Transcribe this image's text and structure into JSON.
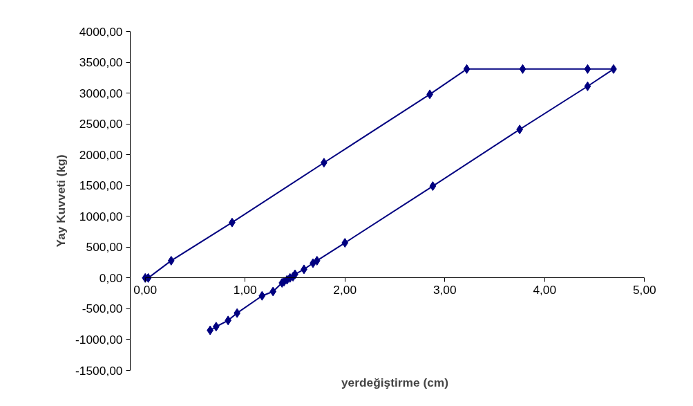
{
  "chart_data": {
    "type": "line",
    "xlabel": "yerdeğiştirme (cm)",
    "ylabel": "Yay Kuvveti (kg)",
    "xlim": [
      0,
      5
    ],
    "ylim": [
      -1500,
      4000
    ],
    "xticks": [
      {
        "value": 0,
        "label": "0,00"
      },
      {
        "value": 1,
        "label": "1,00"
      },
      {
        "value": 2,
        "label": "2,00"
      },
      {
        "value": 3,
        "label": "3,00"
      },
      {
        "value": 4,
        "label": "4,00"
      },
      {
        "value": 5,
        "label": "5,00"
      }
    ],
    "yticks": [
      {
        "value": -1500,
        "label": "-1500,00"
      },
      {
        "value": -1000,
        "label": "-1000,00"
      },
      {
        "value": -500,
        "label": "-500,00"
      },
      {
        "value": 0,
        "label": "0,00"
      },
      {
        "value": 500,
        "label": "500,00"
      },
      {
        "value": 1000,
        "label": "1000,00"
      },
      {
        "value": 1500,
        "label": "1500,00"
      },
      {
        "value": 2000,
        "label": "2000,00"
      },
      {
        "value": 2500,
        "label": "2500,00"
      },
      {
        "value": 3000,
        "label": "3000,00"
      },
      {
        "value": 3500,
        "label": "3500,00"
      },
      {
        "value": 4000,
        "label": "4000,00"
      }
    ],
    "grid": false,
    "marker": "diamond",
    "line_style": "solid",
    "series": [
      {
        "color": "#000080",
        "x": [
          0,
          0.03,
          0.26,
          0.87,
          1.79,
          2.85,
          3.22,
          3.78,
          4.43,
          4.69,
          4.43,
          3.75,
          2.88,
          2.0,
          1.72,
          1.68,
          1.59,
          1.5,
          1.48,
          1.45,
          1.42,
          1.39,
          1.37,
          1.28,
          1.17,
          0.92,
          0.83,
          0.71,
          0.65
        ],
        "values": [
          0,
          0,
          280,
          900,
          1870,
          2980,
          3390,
          3390,
          3390,
          3390,
          3110,
          2410,
          1490,
          570,
          280,
          240,
          140,
          60,
          20,
          0,
          -30,
          -60,
          -80,
          -220,
          -290,
          -570,
          -690,
          -790,
          -850
        ]
      }
    ]
  }
}
